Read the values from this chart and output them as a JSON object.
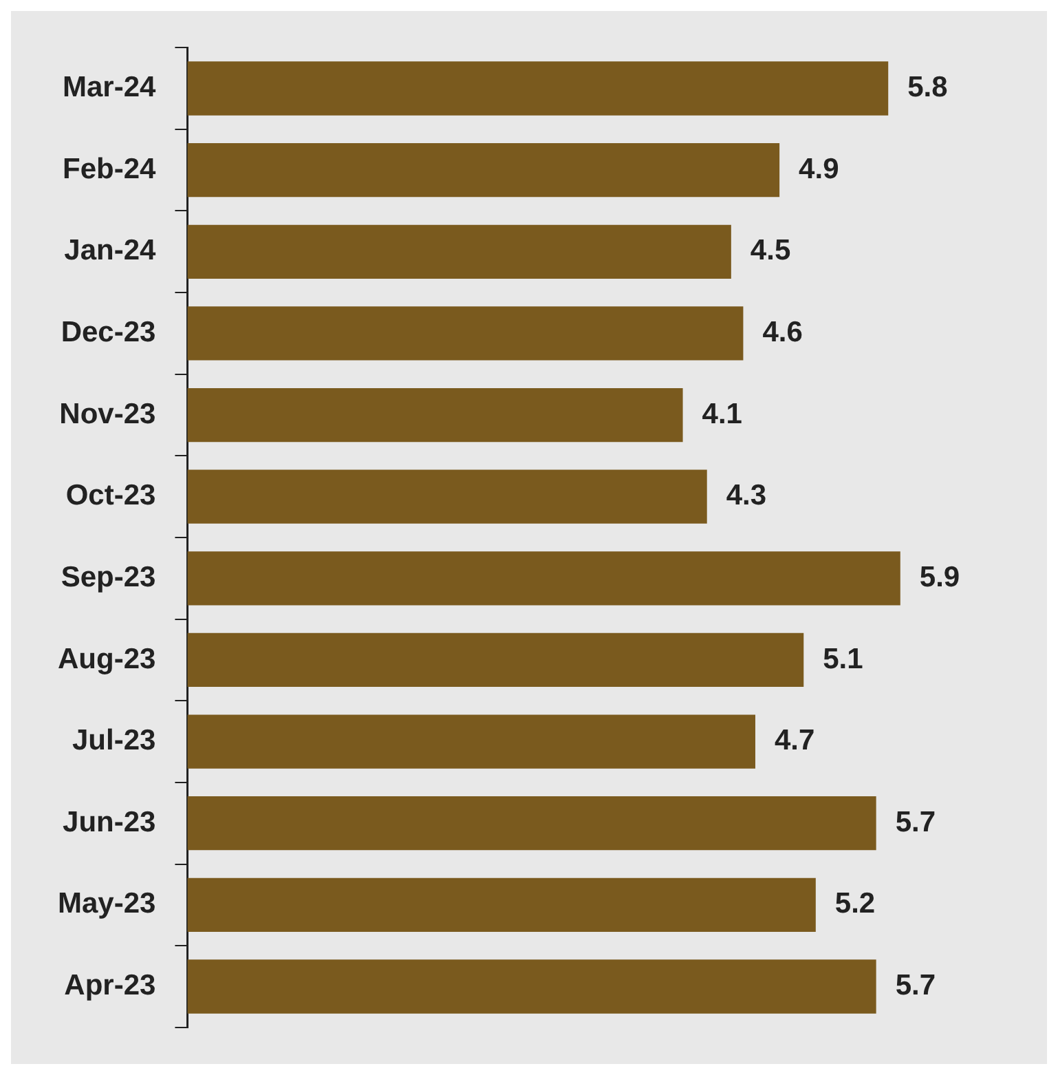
{
  "chart_data": {
    "type": "bar",
    "orientation": "horizontal",
    "categories": [
      "Mar-24",
      "Feb-24",
      "Jan-24",
      "Dec-23",
      "Nov-23",
      "Oct-23",
      "Sep-23",
      "Aug-23",
      "Jul-23",
      "Jun-23",
      "May-23",
      "Apr-23"
    ],
    "values": [
      5.8,
      4.9,
      4.5,
      4.6,
      4.1,
      4.3,
      5.9,
      5.1,
      4.7,
      5.7,
      5.2,
      5.7
    ],
    "color": "#7a5a1e",
    "data_labels": true,
    "tick_labels": "y"
  }
}
